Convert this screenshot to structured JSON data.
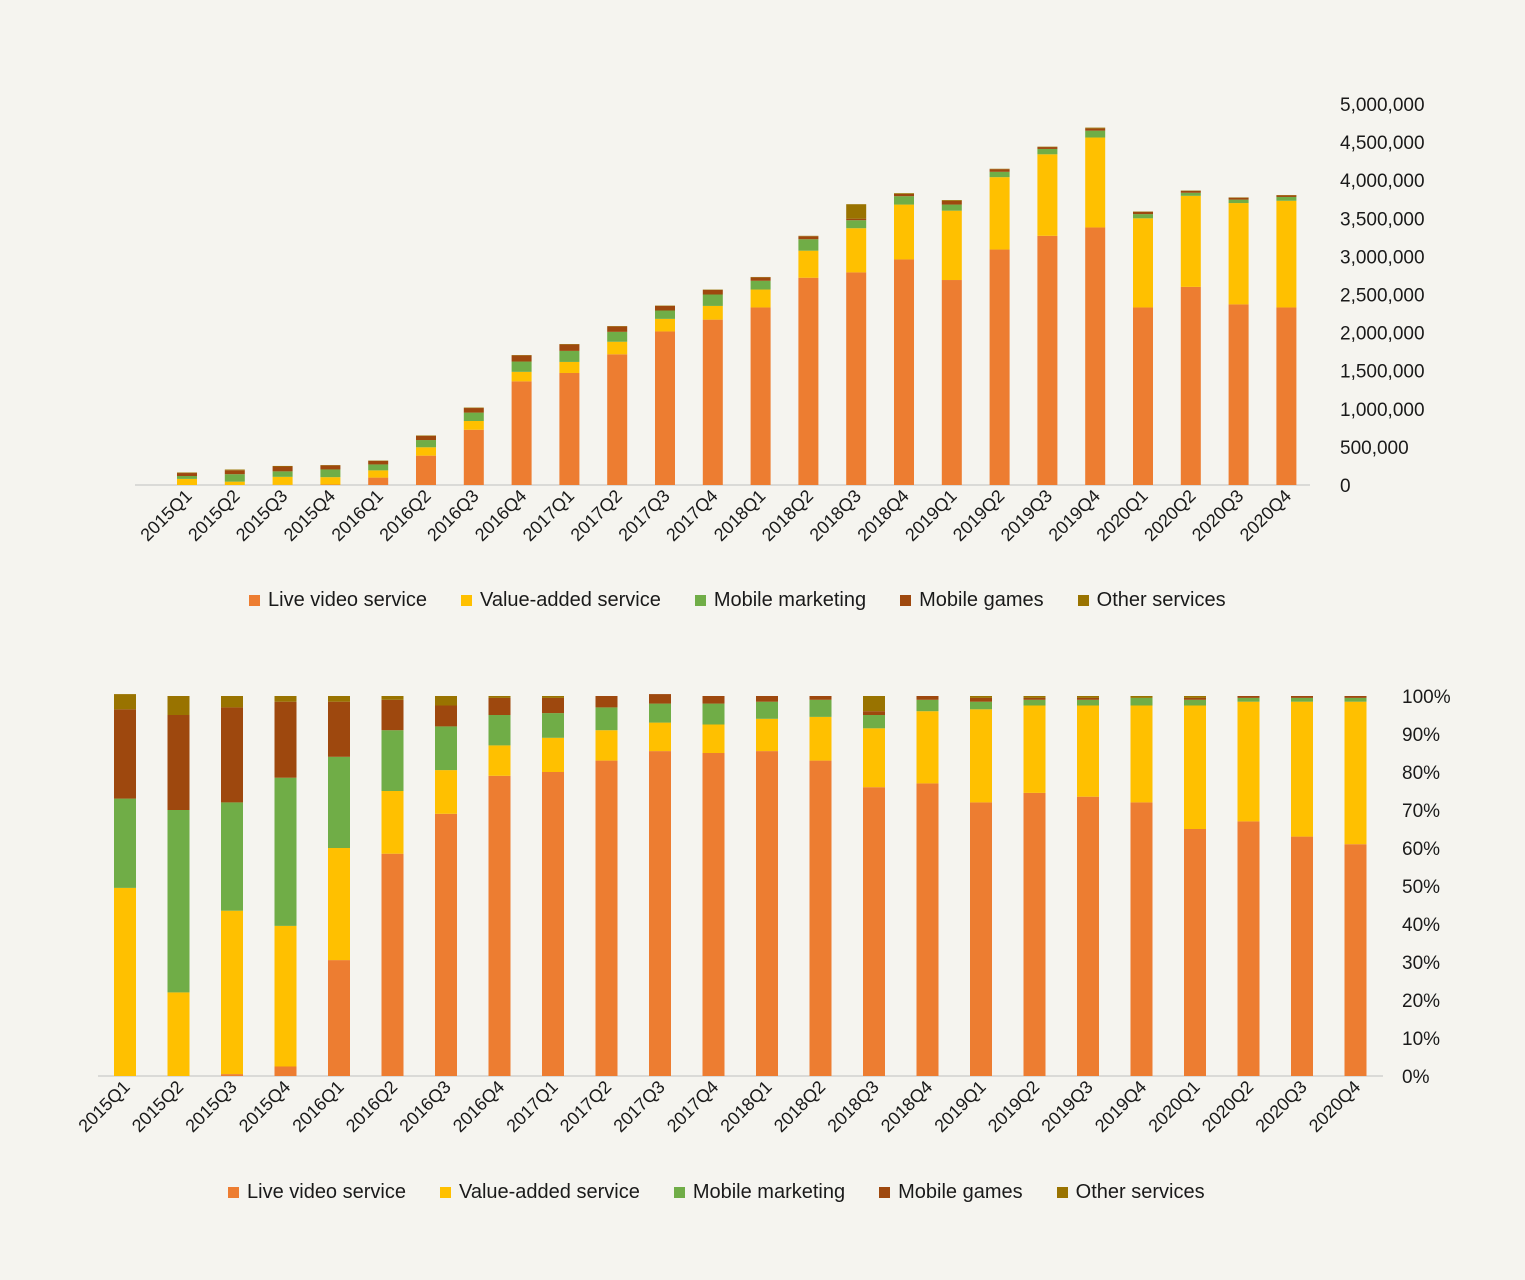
{
  "chart_data": [
    {
      "type": "bar",
      "stacked": true,
      "categories": [
        "2015Q1",
        "2015Q2",
        "2015Q3",
        "2015Q4",
        "2016Q1",
        "2016Q2",
        "2016Q3",
        "2016Q4",
        "2017Q1",
        "2017Q2",
        "2017Q3",
        "2017Q4",
        "2018Q1",
        "2018Q2",
        "2018Q3",
        "2018Q4",
        "2019Q1",
        "2019Q2",
        "2019Q3",
        "2019Q4",
        "2020Q1",
        "2020Q2",
        "2020Q3",
        "2020Q4"
      ],
      "series": [
        {
          "name": "Live video service",
          "color": "#ed7d31",
          "values": [
            0,
            0,
            2000,
            6000,
            97000,
            385000,
            725000,
            1360000,
            1470000,
            1715000,
            2015000,
            2170000,
            2330000,
            2720000,
            2790000,
            2960000,
            2690000,
            3090000,
            3270000,
            3380000,
            2330000,
            2600000,
            2370000,
            2330000
          ]
        },
        {
          "name": "Value-added service",
          "color": "#ffc000",
          "values": [
            80000,
            44000,
            105000,
            97000,
            95000,
            110000,
            115000,
            125000,
            145000,
            165000,
            165000,
            180000,
            235000,
            355000,
            580000,
            720000,
            910000,
            950000,
            1070000,
            1180000,
            1170000,
            1195000,
            1330000,
            1400000
          ]
        },
        {
          "name": "Mobile marketing",
          "color": "#70ad47",
          "values": [
            38000,
            98000,
            72000,
            101000,
            78000,
            95000,
            110000,
            135000,
            145000,
            130000,
            110000,
            150000,
            115000,
            150000,
            105000,
            110000,
            80000,
            70000,
            70000,
            90000,
            55000,
            40000,
            45000,
            50000
          ]
        },
        {
          "name": "Mobile games",
          "color": "#9e480e",
          "values": [
            39000,
            51000,
            64000,
            52000,
            46000,
            55000,
            60000,
            80000,
            85000,
            70000,
            60000,
            60000,
            45000,
            40000,
            20000,
            30000,
            50000,
            35000,
            25000,
            30000,
            30000,
            25000,
            25000,
            20000
          ]
        },
        {
          "name": "Other services",
          "color": "#997300",
          "values": [
            7000,
            10000,
            7000,
            5000,
            5000,
            6000,
            6000,
            5000,
            5000,
            5000,
            5000,
            5000,
            5000,
            5000,
            190000,
            10000,
            10000,
            5000,
            5000,
            10000,
            5000,
            5000,
            5000,
            5000
          ]
        }
      ],
      "ylim": [
        0,
        5000000
      ],
      "yticks": [
        "0",
        "500,000",
        "1,000,000",
        "1,500,000",
        "2,000,000",
        "2,500,000",
        "3,000,000",
        "3,500,000",
        "4,000,000",
        "4,500,000",
        "5,000,000"
      ],
      "ytick_values": [
        0,
        500000,
        1000000,
        1500000,
        2000000,
        2500000,
        3000000,
        3500000,
        4000000,
        4500000,
        5000000
      ],
      "y_axis_side": "right",
      "grid": false,
      "legend": "bottom"
    },
    {
      "type": "bar",
      "stacked": true,
      "percent": true,
      "categories": [
        "2015Q1",
        "2015Q2",
        "2015Q3",
        "2015Q4",
        "2016Q1",
        "2016Q2",
        "2016Q3",
        "2016Q4",
        "2017Q1",
        "2017Q2",
        "2017Q3",
        "2017Q4",
        "2018Q1",
        "2018Q2",
        "2018Q3",
        "2018Q4",
        "2019Q1",
        "2019Q2",
        "2019Q3",
        "2019Q4",
        "2020Q1",
        "2020Q2",
        "2020Q3",
        "2020Q4"
      ],
      "series": [
        {
          "name": "Live video service",
          "color": "#ed7d31",
          "values": [
            0,
            0,
            0.5,
            2.5,
            30.5,
            58.5,
            69,
            79,
            80,
            83,
            85.5,
            85,
            85.5,
            83,
            76,
            77,
            72,
            74.5,
            73.5,
            72,
            65,
            67,
            63,
            61
          ]
        },
        {
          "name": "Value-added service",
          "color": "#ffc000",
          "values": [
            49.5,
            22,
            43,
            37,
            29.5,
            16.5,
            11.5,
            8,
            9,
            8,
            7.5,
            7.5,
            8.5,
            11.5,
            15.5,
            19,
            24.5,
            23,
            24,
            25.5,
            32.5,
            31.5,
            35.5,
            37.5
          ]
        },
        {
          "name": "Mobile marketing",
          "color": "#70ad47",
          "values": [
            23.5,
            48,
            28.5,
            39,
            24,
            16,
            11.5,
            8,
            6.5,
            6,
            5,
            5.5,
            4.5,
            4.5,
            3.5,
            3,
            2,
            1.5,
            1.5,
            2,
            1.5,
            1,
            1,
            1
          ]
        },
        {
          "name": "Mobile games",
          "color": "#9e480e",
          "values": [
            23.5,
            25,
            25,
            20,
            14.5,
            8,
            5.5,
            4.5,
            4,
            3,
            2.5,
            2,
            1.5,
            1,
            1,
            1,
            1,
            0.5,
            0.5,
            0,
            0.5,
            0.5,
            0.5,
            0.5
          ]
        },
        {
          "name": "Other services",
          "color": "#997300",
          "values": [
            4,
            5,
            3,
            1.5,
            1.5,
            1,
            2.5,
            0.5,
            0.5,
            0,
            0,
            0,
            0,
            0,
            4,
            0,
            0.5,
            0.5,
            0.5,
            0.5,
            0.5,
            0,
            0,
            0
          ]
        }
      ],
      "ylim": [
        0,
        100
      ],
      "yticks": [
        "0%",
        "10%",
        "20%",
        "30%",
        "40%",
        "50%",
        "60%",
        "70%",
        "80%",
        "90%",
        "100%"
      ],
      "ytick_values": [
        0,
        10,
        20,
        30,
        40,
        50,
        60,
        70,
        80,
        90,
        100
      ],
      "y_axis_side": "right",
      "grid": false,
      "legend": "bottom"
    }
  ]
}
